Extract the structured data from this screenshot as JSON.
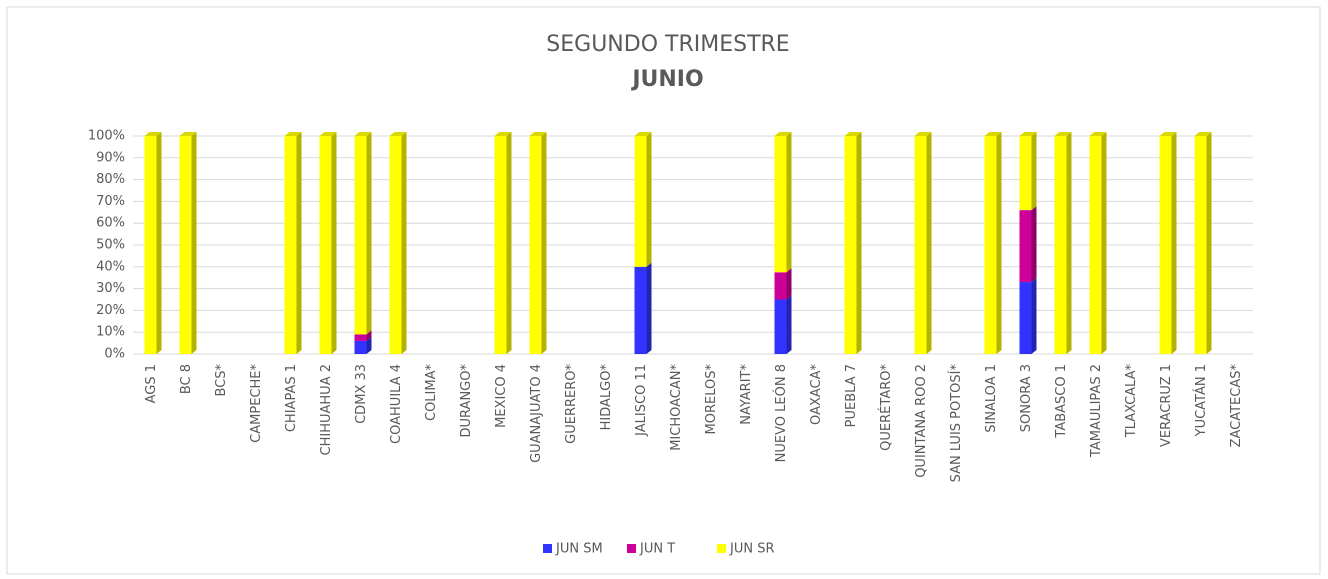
{
  "chart_data": {
    "type": "stacked_bar",
    "title": "SEGUNDO TRIMESTRE",
    "subtitle": "JUNIO",
    "categories": [
      "AGS 1",
      "BC 8",
      "BCS*",
      "CAMPECHE*",
      "CHIAPAS 1",
      "CHIHUAHUA 2",
      "CDMX 33",
      "COAHUILA 4",
      "COLIMA*",
      "DURANGO*",
      "MEXICO 4",
      "GUANAJUATO 4",
      "GUERRERO*",
      "HIDALGO*",
      "JALISCO 11",
      "MICHOACAN*",
      "MORELOS*",
      "NAYARIT*",
      "NUEVO LEÓN 8",
      "OAXACA*",
      "PUEBLA 7",
      "QUERÉTARO*",
      "QUINTANA ROO 2",
      "SAN LUIS POTOSÍ*",
      "SINALOA 1",
      "SONORA 3",
      "TABASCO 1",
      "TAMAULIPAS 2",
      "TLAXCALA*",
      "VERACRUZ 1",
      "YUCATÁN 1",
      "ZACATECAS*"
    ],
    "series": [
      {
        "name": "JUN SM",
        "color": "#3333ff",
        "values": [
          0,
          0,
          null,
          null,
          0,
          0,
          6,
          0,
          null,
          null,
          0,
          0,
          null,
          null,
          40,
          null,
          null,
          null,
          25,
          null,
          0,
          null,
          0,
          null,
          0,
          33,
          0,
          0,
          null,
          0,
          0,
          null
        ]
      },
      {
        "name": "JUN T",
        "color": "#cc0099",
        "values": [
          0,
          0,
          null,
          null,
          0,
          0,
          3,
          0,
          null,
          null,
          0,
          0,
          null,
          null,
          0,
          null,
          null,
          null,
          12.5,
          null,
          0,
          null,
          0,
          null,
          0,
          33,
          0,
          0,
          null,
          0,
          0,
          null
        ]
      },
      {
        "name": "JUN SR",
        "color": "#ffff00",
        "values": [
          100,
          100,
          null,
          null,
          100,
          100,
          91,
          100,
          null,
          null,
          100,
          100,
          null,
          null,
          60,
          null,
          null,
          null,
          62.5,
          null,
          100,
          null,
          100,
          null,
          100,
          34,
          100,
          100,
          null,
          100,
          100,
          null
        ]
      }
    ],
    "ylim": [
      0,
      100
    ],
    "yticks": [
      {
        "value": 0,
        "label": "0%"
      },
      {
        "value": 10,
        "label": "10%"
      },
      {
        "value": 20,
        "label": "20%"
      },
      {
        "value": 30,
        "label": "30%"
      },
      {
        "value": 40,
        "label": "40%"
      },
      {
        "value": 50,
        "label": "50%"
      },
      {
        "value": 60,
        "label": "60%"
      },
      {
        "value": 70,
        "label": "70%"
      },
      {
        "value": 80,
        "label": "80%"
      },
      {
        "value": 90,
        "label": "90%"
      },
      {
        "value": 100,
        "label": "100%"
      }
    ],
    "grid": true,
    "legend": "bottom"
  }
}
